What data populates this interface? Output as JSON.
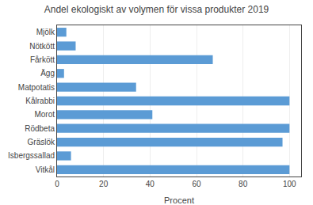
{
  "chart_data": {
    "type": "bar",
    "orientation": "horizontal",
    "title": "Andel ekologiskt av volymen för vissa produkter 2019",
    "categories": [
      "Mjölk",
      "Nötkött",
      "Fårkött",
      "Ägg",
      "Matpotatis",
      "Kålrabbi",
      "Morot",
      "Rödbeta",
      "Gräslök",
      "Isbergssallad",
      "Vitkål"
    ],
    "values": [
      4,
      8,
      67,
      3,
      34,
      100,
      41,
      100,
      97,
      6,
      100
    ],
    "color": "#5B9BD5",
    "xlabel": "Procent",
    "xlim": [
      0,
      105
    ],
    "xticks": [
      0,
      20,
      40,
      60,
      80,
      100
    ],
    "grid": true
  }
}
